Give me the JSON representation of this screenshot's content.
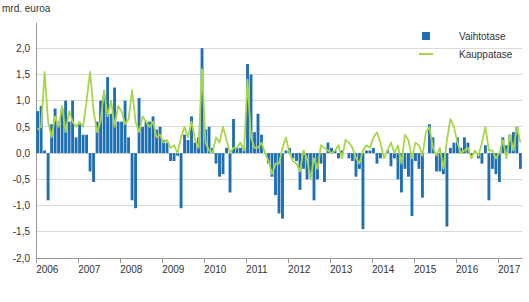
{
  "chart_data": {
    "type": "bar",
    "ylabel": "mrd. euroa",
    "categories": [
      "2006",
      null,
      null,
      null,
      null,
      null,
      null,
      null,
      null,
      null,
      null,
      null,
      "2007",
      null,
      null,
      null,
      null,
      null,
      null,
      null,
      null,
      null,
      null,
      null,
      "2008",
      null,
      null,
      null,
      null,
      null,
      null,
      null,
      null,
      null,
      null,
      null,
      "2009",
      null,
      null,
      null,
      null,
      null,
      null,
      null,
      null,
      null,
      null,
      null,
      "2010",
      null,
      null,
      null,
      null,
      null,
      null,
      null,
      null,
      null,
      null,
      null,
      "2011",
      null,
      null,
      null,
      null,
      null,
      null,
      null,
      null,
      null,
      null,
      null,
      "2012",
      null,
      null,
      null,
      null,
      null,
      null,
      null,
      null,
      null,
      null,
      null,
      "2013",
      null,
      null,
      null,
      null,
      null,
      null,
      null,
      null,
      null,
      null,
      null,
      "2014",
      null,
      null,
      null,
      null,
      null,
      null,
      null,
      null,
      null,
      null,
      null,
      "2015",
      null,
      null,
      null,
      null,
      null,
      null,
      null,
      null,
      null,
      null,
      null,
      "2016",
      null,
      null,
      null,
      null,
      null,
      null,
      null,
      null,
      null,
      null,
      null,
      "2017",
      null,
      null,
      null,
      null,
      null,
      null
    ],
    "series": [
      {
        "name": "Vaihtotase",
        "type": "bar",
        "color": "#1f6fb2",
        "values": [
          0.8,
          0.9,
          0.05,
          -0.9,
          0.55,
          0.85,
          0.6,
          0.85,
          1.0,
          0.6,
          1.0,
          0.3,
          0.55,
          0.35,
          0.35,
          -0.35,
          -0.55,
          0.6,
          1.0,
          1.1,
          1.45,
          0.75,
          1.25,
          0.6,
          0.6,
          1.0,
          0.3,
          -0.9,
          -1.05,
          1.05,
          0.5,
          0.6,
          0.6,
          0.7,
          0.45,
          0.5,
          0.25,
          0.2,
          -0.15,
          -0.15,
          -0.05,
          -1.05,
          0.35,
          0.25,
          0.7,
          0.2,
          0.3,
          2.0,
          0.45,
          0.5,
          0.1,
          -0.2,
          -0.45,
          -0.4,
          0.1,
          -0.75,
          0.65,
          0.1,
          0.1,
          0.1,
          1.7,
          1.5,
          0.4,
          0.75,
          0.35,
          0.0,
          -0.2,
          -0.45,
          -0.8,
          -1.15,
          -1.25,
          0.05,
          0.1,
          -0.1,
          -0.15,
          -0.7,
          -0.3,
          -0.5,
          -0.4,
          -0.9,
          -0.5,
          -0.2,
          -0.55,
          0.2,
          0.1,
          0.05,
          -0.1,
          0.05,
          0.0,
          -0.1,
          -0.15,
          -0.45,
          -0.3,
          -1.45,
          0.05,
          0.05,
          0.1,
          -0.2,
          -0.1,
          0.0,
          0.05,
          -0.25,
          -0.1,
          -0.5,
          -0.75,
          -0.3,
          -0.45,
          -1.2,
          -0.15,
          -0.3,
          -0.85,
          0.0,
          0.55,
          0.3,
          -0.35,
          -0.35,
          -0.4,
          -1.4,
          0.1,
          0.2,
          0.3,
          0.1,
          0.3,
          0.2,
          -0.05,
          0.0,
          -0.1,
          -0.2,
          0.15,
          -0.9,
          -0.3,
          -0.4,
          -0.55,
          0.3,
          0.15,
          0.35,
          0.4,
          0.5,
          -0.3
        ]
      },
      {
        "name": "Kauppatase",
        "type": "line",
        "color": "#a8d64a",
        "values": [
          0.45,
          0.5,
          1.55,
          0.6,
          0.3,
          0.7,
          0.5,
          0.9,
          0.4,
          0.8,
          0.6,
          0.5,
          0.6,
          0.5,
          1.0,
          1.55,
          0.8,
          0.4,
          0.6,
          1.2,
          0.7,
          1.0,
          0.5,
          0.9,
          0.8,
          0.55,
          0.65,
          1.2,
          0.6,
          0.4,
          0.7,
          0.6,
          0.5,
          0.6,
          0.3,
          0.35,
          0.2,
          0.25,
          0.1,
          0.15,
          0.0,
          0.3,
          0.5,
          0.3,
          0.6,
          0.25,
          0.1,
          1.6,
          0.2,
          0.05,
          0.0,
          0.3,
          0.2,
          0.5,
          0.25,
          0.0,
          0.1,
          0.1,
          0.2,
          0.05,
          1.4,
          0.3,
          0.1,
          0.1,
          0.2,
          0.0,
          -0.15,
          -0.4,
          -0.2,
          -0.2,
          0.1,
          0.3,
          0.0,
          -0.15,
          -0.2,
          -0.35,
          0.05,
          -0.1,
          -0.5,
          -0.1,
          -0.3,
          0.15,
          0.1,
          0.05,
          0.0,
          0.05,
          0.15,
          -0.1,
          0.25,
          0.2,
          0.1,
          -0.1,
          -0.2,
          0.05,
          0.15,
          0.1,
          0.3,
          0.4,
          0.2,
          -0.1,
          0.05,
          0.2,
          0.0,
          0.15,
          -0.2,
          0.35,
          0.25,
          -0.1,
          0.2,
          0.15,
          -0.05,
          0.4,
          0.5,
          0.1,
          -0.05,
          0.1,
          -0.3,
          0.25,
          0.65,
          0.5,
          0.2,
          0.0,
          0.05,
          0.1,
          -0.1,
          0.05,
          -0.05,
          0.2,
          0.5,
          0.05,
          0.05,
          -0.1,
          0.0,
          0.25,
          -0.1,
          0.35,
          0.05,
          0.5,
          0.2
        ]
      }
    ],
    "ylim": [
      -2,
      2.5
    ],
    "yticks": [
      {
        "value": -2,
        "label": "-2,0"
      },
      {
        "value": -1.5,
        "label": "-1,5"
      },
      {
        "value": -1,
        "label": "-1,0"
      },
      {
        "value": -0.5,
        "label": "-0,5"
      },
      {
        "value": 0,
        "label": "0,0"
      },
      {
        "value": 0.5,
        "label": "0,5"
      },
      {
        "value": 1,
        "label": "1,0"
      },
      {
        "value": 1.5,
        "label": "1,5"
      },
      {
        "value": 2,
        "label": "2,0"
      }
    ],
    "grid": true,
    "legend": "top-right"
  }
}
